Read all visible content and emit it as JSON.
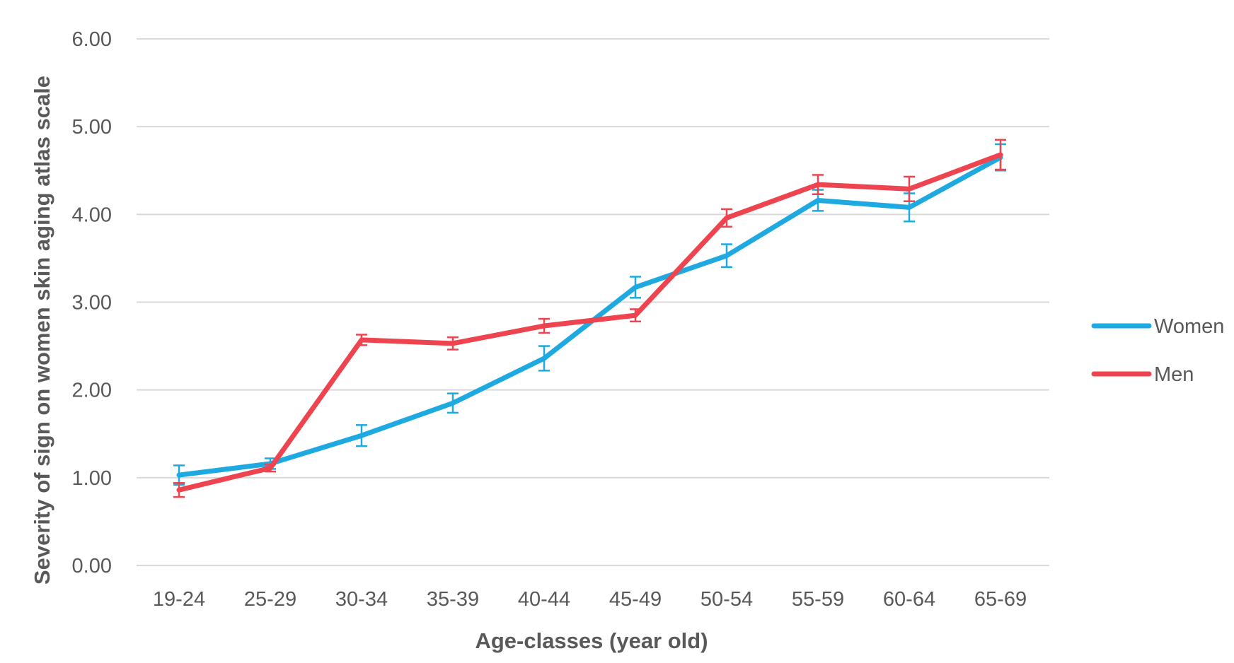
{
  "chart_data": {
    "type": "line",
    "title": "",
    "xlabel": "Age-classes (year old)",
    "ylabel": "Severity of sign on women skin aging atlas scale",
    "ylim": [
      0,
      6
    ],
    "yticks": [
      "0.00",
      "1.00",
      "2.00",
      "3.00",
      "4.00",
      "5.00",
      "6.00"
    ],
    "grid": true,
    "legend_position": "right",
    "categories": [
      "19-24",
      "25-29",
      "30-34",
      "35-39",
      "40-44",
      "45-49",
      "50-54",
      "55-59",
      "60-64",
      "65-69"
    ],
    "series": [
      {
        "name": "Women",
        "color": "#1EAAE0",
        "values": [
          1.03,
          1.16,
          1.48,
          1.85,
          2.36,
          3.17,
          3.53,
          4.16,
          4.08,
          4.65
        ],
        "errors": [
          0.11,
          0.06,
          0.12,
          0.11,
          0.14,
          0.12,
          0.13,
          0.12,
          0.16,
          0.15
        ]
      },
      {
        "name": "Men",
        "color": "#EE4450",
        "values": [
          0.86,
          1.11,
          2.57,
          2.53,
          2.73,
          2.85,
          3.96,
          4.34,
          4.29,
          4.68
        ],
        "errors": [
          0.08,
          0.04,
          0.06,
          0.07,
          0.08,
          0.07,
          0.1,
          0.11,
          0.14,
          0.17
        ]
      }
    ]
  }
}
